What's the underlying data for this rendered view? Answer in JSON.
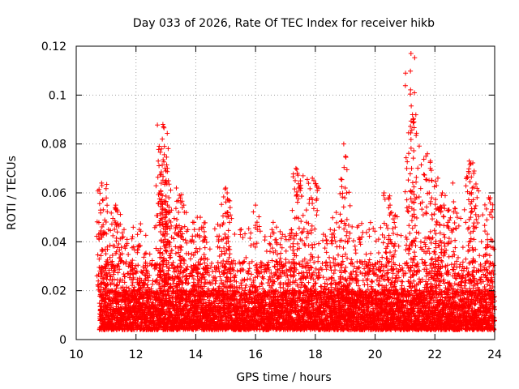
{
  "chart_data": {
    "type": "scatter",
    "title": "Day 033 of 2026, Rate Of TEC Index for receiver hikb",
    "xlabel": "GPS time / hours",
    "ylabel": "ROTI / TECUs",
    "xlim": [
      10,
      24
    ],
    "ylim": [
      0,
      0.12
    ],
    "xticks": [
      "10",
      "12",
      "14",
      "16",
      "18",
      "20",
      "22",
      "24"
    ],
    "xtick_values": [
      10,
      12,
      14,
      16,
      18,
      20,
      22,
      24
    ],
    "yticks": [
      "0",
      "0.02",
      "0.04",
      "0.06",
      "0.08",
      "0.1",
      "0.12"
    ],
    "ytick_values": [
      0,
      0.02,
      0.04,
      0.06,
      0.08,
      0.1,
      0.12
    ],
    "grid": true,
    "marker": "plus",
    "color": "#ff0000",
    "data_start_hour": 10.78,
    "baseline_band": [
      0.004,
      0.02
    ],
    "series": [
      {
        "name": "ROTI",
        "x": [
          10.85,
          10.86,
          10.88,
          10.9,
          10.92,
          11.3,
          11.32,
          11.35,
          11.6,
          11.7,
          12.05,
          12.1,
          12.3,
          12.85,
          12.88,
          12.9,
          12.92,
          12.95,
          12.97,
          13.0,
          13.05,
          13.1,
          13.35,
          13.45,
          13.5,
          13.55,
          13.6,
          13.9,
          13.95,
          14.05,
          14.15,
          14.2,
          14.3,
          14.9,
          15.0,
          15.05,
          15.1,
          15.15,
          16.0,
          16.55,
          16.7,
          16.9,
          17.2,
          17.35,
          17.4,
          17.45,
          17.7,
          17.9,
          17.95,
          18.5,
          18.7,
          18.95,
          19.0,
          19.05,
          19.4,
          19.8,
          20.3,
          20.45,
          20.5,
          20.55,
          21.2,
          21.25,
          21.3,
          21.22,
          21.7,
          21.75,
          21.85,
          21.9,
          22.05,
          22.1,
          22.25,
          22.3,
          22.45,
          22.6,
          22.75,
          23.15,
          23.2,
          23.3,
          23.25,
          23.6,
          23.8,
          23.85
        ],
        "y": [
          0.064,
          0.063,
          0.057,
          0.047,
          0.044,
          0.054,
          0.055,
          0.053,
          0.045,
          0.041,
          0.043,
          0.038,
          0.035,
          0.078,
          0.082,
          0.088,
          0.087,
          0.079,
          0.07,
          0.069,
          0.055,
          0.058,
          0.062,
          0.059,
          0.056,
          0.054,
          0.055,
          0.048,
          0.045,
          0.05,
          0.05,
          0.046,
          0.041,
          0.047,
          0.062,
          0.06,
          0.057,
          0.054,
          0.055,
          0.045,
          0.046,
          0.043,
          0.045,
          0.07,
          0.068,
          0.062,
          0.053,
          0.066,
          0.065,
          0.045,
          0.052,
          0.08,
          0.062,
          0.06,
          0.046,
          0.045,
          0.06,
          0.058,
          0.055,
          0.052,
          0.117,
          0.092,
          0.089,
          0.07,
          0.075,
          0.076,
          0.073,
          0.065,
          0.063,
          0.066,
          0.06,
          0.055,
          0.053,
          0.064,
          0.05,
          0.073,
          0.072,
          0.068,
          0.062,
          0.051,
          0.058,
          0.058
        ]
      }
    ]
  }
}
